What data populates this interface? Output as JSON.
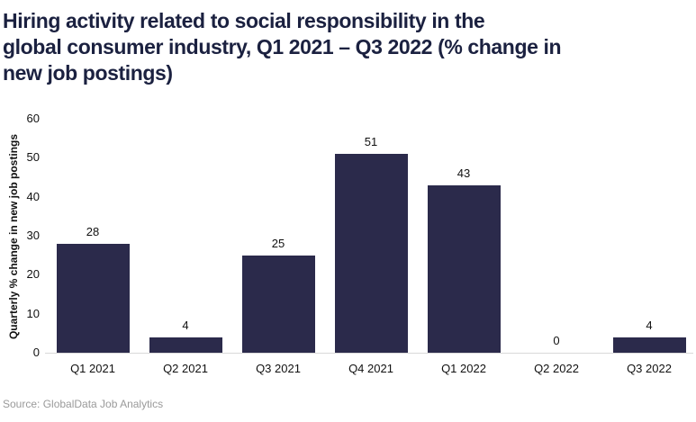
{
  "header": {
    "title_lines": [
      "Hiring activity related to social responsibility in the",
      "global consumer industry, Q1 2021 – Q3 2022 (% change in",
      "new job postings)"
    ]
  },
  "chart_data": {
    "type": "bar",
    "title": "Hiring activity related to social responsibility in the global consumer industry, Q1 2021 – Q3 2022 (% change in new job postings)",
    "categories": [
      "Q1 2021",
      "Q2 2021",
      "Q3 2021",
      "Q4 2021",
      "Q1 2022",
      "Q2 2022",
      "Q3 2022"
    ],
    "values": [
      28,
      4,
      25,
      51,
      43,
      0,
      4
    ],
    "xlabel": "",
    "ylabel": "Quarterly % change in new job postings",
    "ylim": [
      0,
      60
    ],
    "yticks": [
      0,
      10,
      20,
      30,
      40,
      50,
      60
    ],
    "grid": false,
    "legend_position": "none",
    "value_labels": true,
    "bar_color": "#2b2a4b"
  },
  "footer": {
    "source": "Source: GlobalData Job Analytics"
  },
  "colors": {
    "title_text": "#1b2140",
    "bar": "#2b2a4b",
    "axis_line": "#d9d9d9",
    "label_text": "#111111",
    "source_text": "#9a9a9a",
    "background": "#ffffff"
  }
}
